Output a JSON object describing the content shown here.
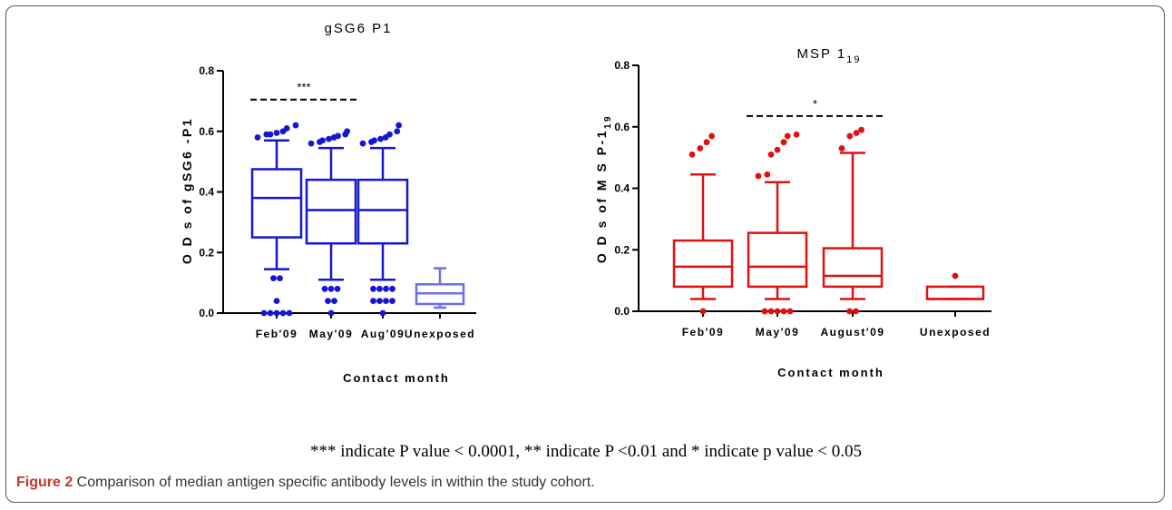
{
  "chart_data": [
    {
      "type": "box",
      "title": "gSG6 P1",
      "xlabel": "Contact month",
      "ylabel": "O D s of gSG6 -P1",
      "ylim": [
        0,
        0.8
      ],
      "yticks": [
        "0.0",
        "0.2",
        "0.4",
        "0.6",
        "0.8"
      ],
      "color": "#1515d6",
      "unexposed_color": "#6e6eea",
      "categories": [
        "Feb'09",
        "May'09",
        "Aug'09",
        "Unexposed"
      ],
      "boxes": [
        {
          "whisker_low": 0.145,
          "q1": 0.25,
          "median": 0.38,
          "q3": 0.475,
          "whisker_high": 0.57,
          "outliers": [
            0.59,
            0.595,
            0.6,
            0.61,
            0.62,
            0.59,
            0.58,
            0.115,
            0.115,
            0.04,
            0.0,
            0.0,
            0.0,
            0.0,
            0.0
          ]
        },
        {
          "whisker_low": 0.11,
          "q1": 0.23,
          "median": 0.34,
          "q3": 0.44,
          "whisker_high": 0.545,
          "outliers": [
            0.56,
            0.565,
            0.57,
            0.575,
            0.58,
            0.585,
            0.59,
            0.6,
            0.08,
            0.08,
            0.08,
            0.04,
            0.04,
            0.0
          ]
        },
        {
          "whisker_low": 0.11,
          "q1": 0.23,
          "median": 0.34,
          "q3": 0.44,
          "whisker_high": 0.545,
          "outliers": [
            0.56,
            0.565,
            0.57,
            0.575,
            0.58,
            0.59,
            0.6,
            0.62,
            0.08,
            0.08,
            0.08,
            0.08,
            0.04,
            0.04,
            0.04,
            0.04,
            0.0
          ]
        },
        {
          "whisker_low": 0.018,
          "q1": 0.03,
          "median": 0.065,
          "q3": 0.095,
          "whisker_high": 0.148,
          "outliers": []
        }
      ],
      "significance": {
        "label": "***",
        "from": 0,
        "to": 1,
        "y": 0.705
      }
    },
    {
      "type": "box",
      "title_main": "MSP 1",
      "title_sub": "19",
      "xlabel": "Contact month",
      "ylabel_main": "O D s of M S P-1",
      "ylabel_sub": "19",
      "ylim": [
        0,
        0.8
      ],
      "yticks": [
        "0.0",
        "0.2",
        "0.4",
        "0.6",
        "0.8"
      ],
      "color": "#e01010",
      "categories": [
        "Feb'09",
        "May'09",
        "August'09",
        "Unexposed"
      ],
      "boxes": [
        {
          "whisker_low": 0.04,
          "q1": 0.08,
          "median": 0.145,
          "q3": 0.23,
          "whisker_high": 0.445,
          "outliers": [
            0.51,
            0.53,
            0.55,
            0.57,
            0.0
          ]
        },
        {
          "whisker_low": 0.04,
          "q1": 0.08,
          "median": 0.145,
          "q3": 0.255,
          "whisker_high": 0.42,
          "outliers": [
            0.44,
            0.445,
            0.51,
            0.525,
            0.55,
            0.57,
            0.575,
            0.0,
            0.0,
            0.0,
            0.0,
            0.0
          ]
        },
        {
          "whisker_low": 0.04,
          "q1": 0.08,
          "median": 0.115,
          "q3": 0.205,
          "whisker_high": 0.515,
          "outliers": [
            0.53,
            0.57,
            0.58,
            0.59,
            0.0,
            0.0
          ]
        },
        {
          "whisker_low": 0.04,
          "q1": 0.04,
          "median": 0.04,
          "q3": 0.08,
          "whisker_high": 0.08,
          "outliers": [
            0.115
          ]
        }
      ],
      "significance": {
        "label": "*",
        "from": 1,
        "to": 2,
        "y": 0.635
      }
    }
  ],
  "footnote": "*** indicate P value < 0.0001, ** indicate P <0.01 and * indicate p value < 0.05",
  "caption": {
    "label": "Figure 2",
    "text": " Comparison of median antigen specific antibody levels in within the study cohort."
  }
}
